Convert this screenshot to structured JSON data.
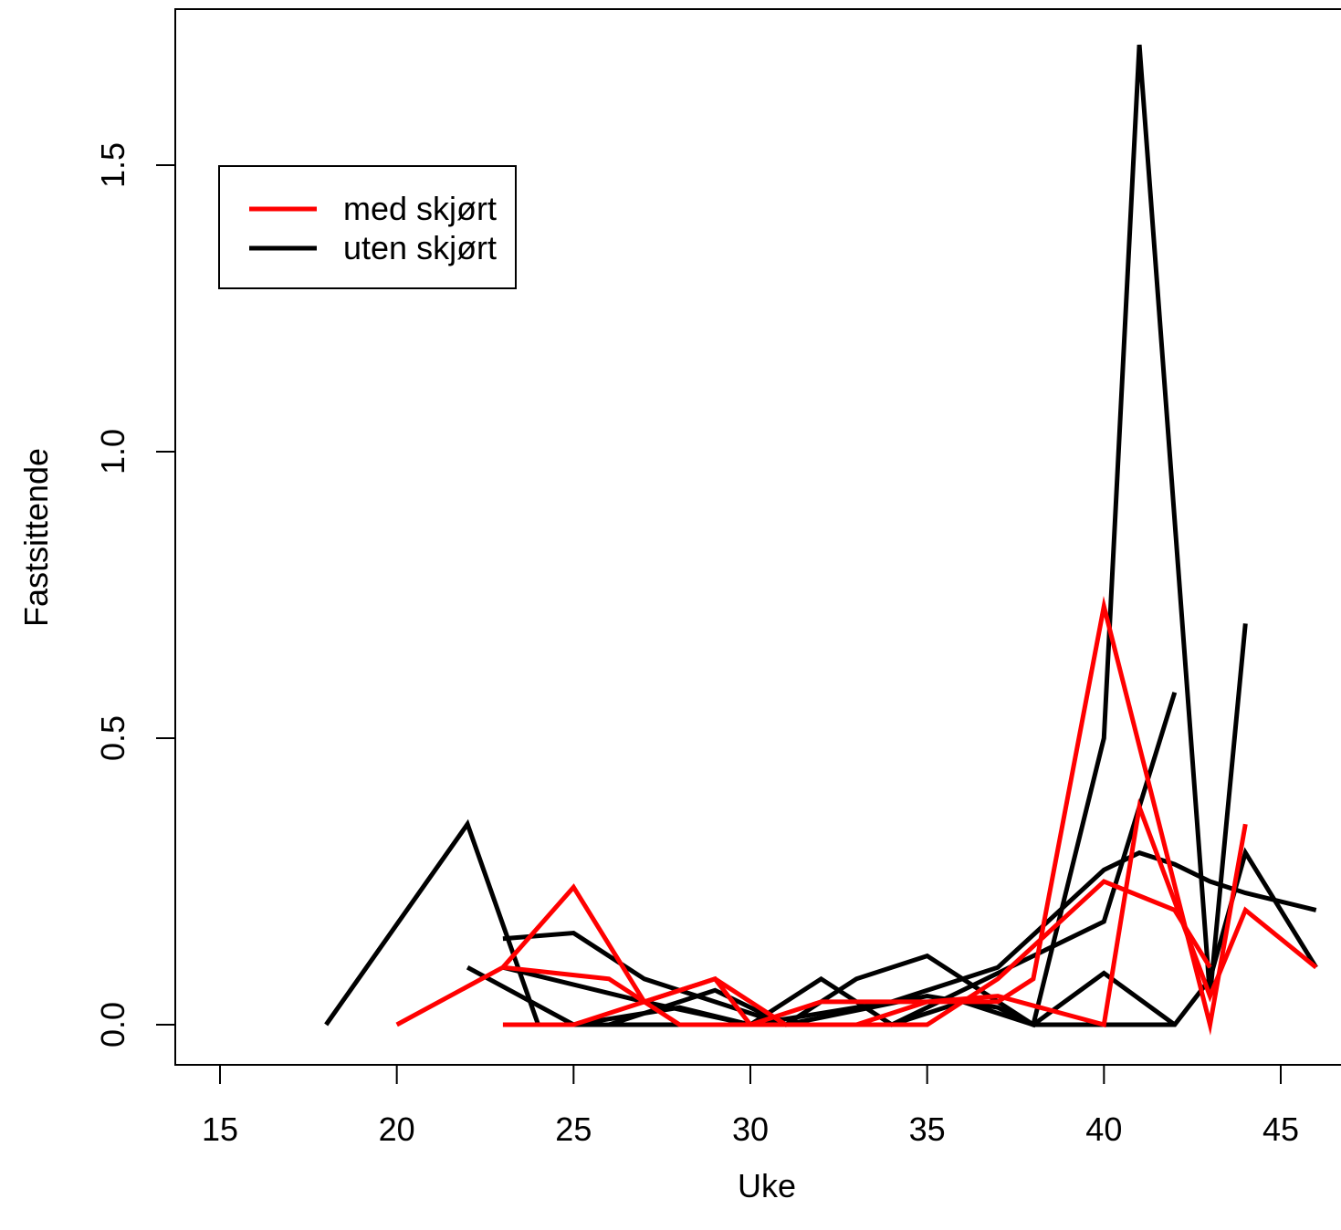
{
  "chart_data": {
    "type": "line",
    "title": "",
    "xlabel": "Uke",
    "ylabel": "Fastsittende",
    "xlim": [
      14,
      47
    ],
    "ylim": [
      -0.07,
      1.77
    ],
    "x_ticks": [
      15,
      20,
      25,
      30,
      35,
      40,
      45
    ],
    "y_ticks": [
      0.0,
      0.5,
      1.0,
      1.5
    ],
    "y_tick_labels": [
      "0.0",
      "0.5",
      "1.0",
      "1.5"
    ],
    "legend": {
      "position": "top-left",
      "entries": [
        {
          "label": "med skjørt",
          "color": "#ff0000"
        },
        {
          "label": "uten skjørt",
          "color": "#000000"
        }
      ]
    },
    "colors": {
      "med": "#ff0000",
      "uten": "#000000"
    },
    "series": [
      {
        "group": "uten",
        "points": [
          [
            18,
            0.0
          ],
          [
            22,
            0.35
          ],
          [
            24,
            0.0
          ]
        ]
      },
      {
        "group": "uten",
        "points": [
          [
            22,
            0.1
          ],
          [
            25,
            0.0
          ],
          [
            28,
            0.0
          ],
          [
            30,
            0.0
          ],
          [
            32,
            0.08
          ],
          [
            34,
            0.0
          ],
          [
            36,
            0.04
          ],
          [
            38,
            0.0
          ],
          [
            40,
            0.5
          ],
          [
            41,
            1.71
          ],
          [
            43,
            0.05
          ],
          [
            44,
            0.7
          ]
        ]
      },
      {
        "group": "uten",
        "points": [
          [
            23,
            0.15
          ],
          [
            25,
            0.16
          ],
          [
            27,
            0.08
          ],
          [
            31,
            0.0
          ],
          [
            33,
            0.08
          ],
          [
            35,
            0.12
          ],
          [
            38,
            0.0
          ],
          [
            40,
            0.0
          ],
          [
            42,
            0.0
          ],
          [
            43,
            0.08
          ],
          [
            44,
            0.3
          ],
          [
            46,
            0.1
          ]
        ]
      },
      {
        "group": "uten",
        "points": [
          [
            23,
            0.1
          ],
          [
            27,
            0.04
          ],
          [
            30,
            0.0
          ],
          [
            34,
            0.04
          ],
          [
            37,
            0.1
          ],
          [
            40,
            0.27
          ],
          [
            41,
            0.3
          ],
          [
            42,
            0.28
          ],
          [
            43,
            0.25
          ],
          [
            44,
            0.23
          ],
          [
            46,
            0.2
          ]
        ]
      },
      {
        "group": "uten",
        "points": [
          [
            25,
            0.0
          ],
          [
            28,
            0.03
          ],
          [
            30,
            0.0
          ],
          [
            34,
            0.0
          ],
          [
            38,
            0.12
          ],
          [
            40,
            0.18
          ],
          [
            42,
            0.58
          ]
        ]
      },
      {
        "group": "uten",
        "points": [
          [
            26,
            0.0
          ],
          [
            29,
            0.06
          ],
          [
            31,
            0.0
          ],
          [
            35,
            0.05
          ],
          [
            37,
            0.03
          ],
          [
            38,
            0.0
          ],
          [
            40,
            0.09
          ],
          [
            42,
            0.0
          ]
        ]
      },
      {
        "group": "med",
        "points": [
          [
            20,
            0.0
          ],
          [
            23,
            0.1
          ],
          [
            25,
            0.24
          ],
          [
            27,
            0.04
          ],
          [
            29,
            0.08
          ],
          [
            30,
            0.0
          ],
          [
            33,
            0.0
          ],
          [
            35,
            0.04
          ],
          [
            37,
            0.04
          ],
          [
            38,
            0.08
          ],
          [
            40,
            0.73
          ],
          [
            43,
            0.0
          ],
          [
            44,
            0.35
          ]
        ]
      },
      {
        "group": "med",
        "points": [
          [
            23,
            0.1
          ],
          [
            26,
            0.08
          ],
          [
            28,
            0.0
          ],
          [
            30,
            0.0
          ],
          [
            32,
            0.04
          ],
          [
            35,
            0.04
          ],
          [
            37,
            0.05
          ],
          [
            40,
            0.0
          ],
          [
            41,
            0.38
          ],
          [
            43,
            0.05
          ],
          [
            44,
            0.2
          ],
          [
            46,
            0.1
          ]
        ]
      },
      {
        "group": "med",
        "points": [
          [
            23,
            0.0
          ],
          [
            25,
            0.0
          ],
          [
            29,
            0.08
          ],
          [
            31,
            0.0
          ],
          [
            35,
            0.0
          ],
          [
            37,
            0.08
          ],
          [
            40,
            0.25
          ],
          [
            42,
            0.2
          ],
          [
            43,
            0.1
          ]
        ]
      }
    ]
  }
}
